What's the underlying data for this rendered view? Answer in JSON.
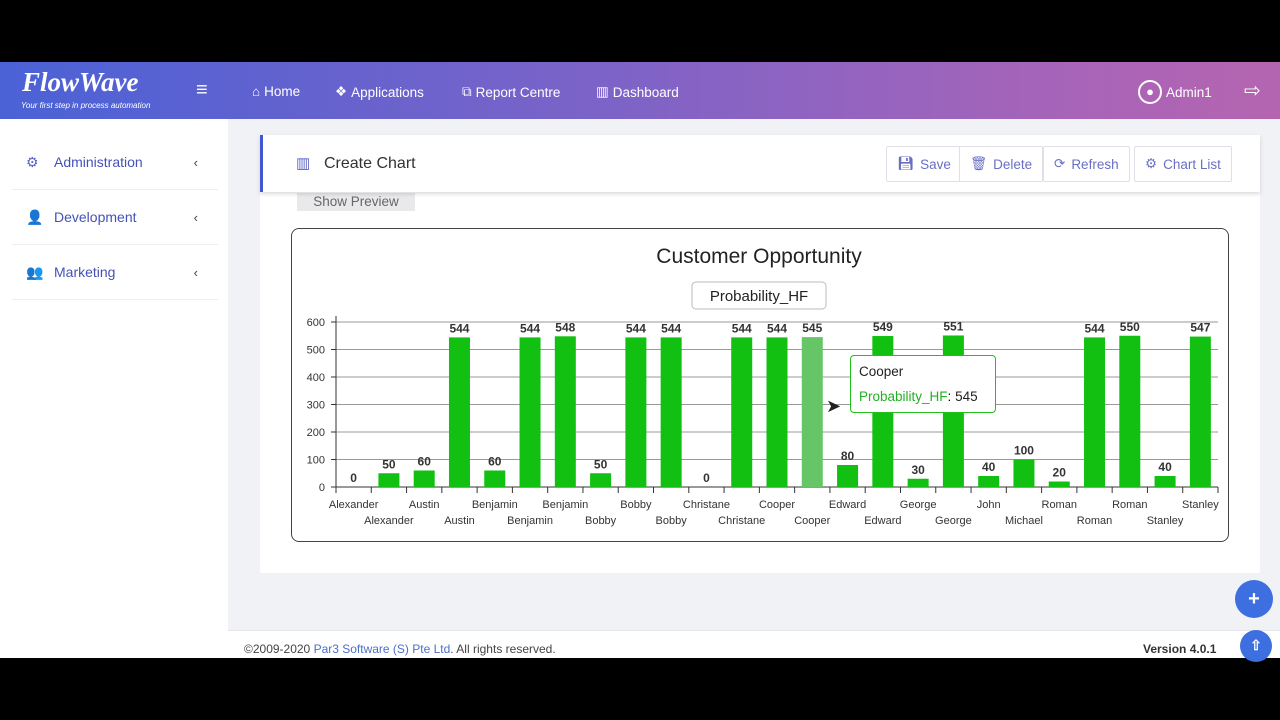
{
  "brand": {
    "name": "FlowWave",
    "tagline": "Your first step in process automation"
  },
  "nav": {
    "items": [
      {
        "label": "Home",
        "icon": "home-icon"
      },
      {
        "label": "Applications",
        "icon": "cubes-icon"
      },
      {
        "label": "Report Centre",
        "icon": "copy-icon"
      },
      {
        "label": "Dashboard",
        "icon": "bar-chart-icon"
      }
    ],
    "user": "Admin1"
  },
  "sidebar": {
    "items": [
      {
        "label": "Administration",
        "icon": "cogs-icon"
      },
      {
        "label": "Development",
        "icon": "user-plus-icon"
      },
      {
        "label": "Marketing",
        "icon": "users-icon"
      }
    ]
  },
  "page": {
    "title": "Create Chart",
    "preview_label": "Show Preview"
  },
  "toolbar": {
    "save": "Save",
    "delete": "Delete",
    "refresh": "Refresh",
    "chart_list": "Chart List"
  },
  "tooltip": {
    "title": "Cooper",
    "series": "Probability_HF",
    "value": "545"
  },
  "chart_data": {
    "type": "bar",
    "title": "Customer Opportunity",
    "legend": {
      "entries": [
        "Probability_HF"
      ],
      "placement": "top"
    },
    "ylim": [
      0,
      600
    ],
    "yticks": [
      0,
      100,
      200,
      300,
      400,
      500,
      600
    ],
    "grid": true,
    "color": "#11c011",
    "highlight_color": "#66c566",
    "highlight_index": 13,
    "categories": [
      "Alexander",
      "Alexander",
      "Austin",
      "Austin",
      "Benjamin",
      "Benjamin",
      "Benjamin",
      "Bobby",
      "Bobby",
      "Bobby",
      "Christane",
      "Christane",
      "Cooper",
      "Cooper",
      "Edward",
      "Edward",
      "George",
      "George",
      "John",
      "Michael",
      "Roman",
      "Roman",
      "Roman",
      "Stanley",
      "Stanley"
    ],
    "series": [
      {
        "name": "Probability_HF",
        "values": [
          0,
          50,
          60,
          544,
          60,
          544,
          548,
          50,
          544,
          544,
          0,
          544,
          544,
          545,
          80,
          549,
          30,
          551,
          40,
          100,
          20,
          544,
          550,
          40,
          547
        ]
      }
    ]
  },
  "footer": {
    "copyright_pre": "©2009-2020 ",
    "company": "Par3 Software (S) Pte Ltd",
    "copyright_post": ". All rights reserved.",
    "version": "Version 4.0.1"
  }
}
